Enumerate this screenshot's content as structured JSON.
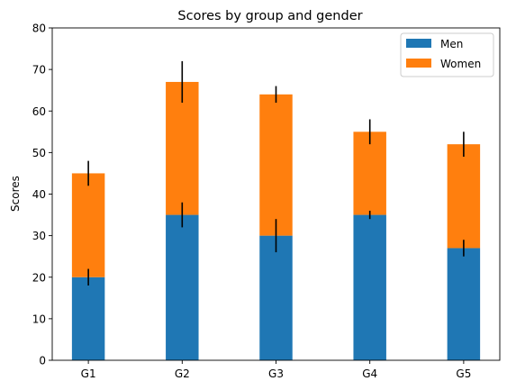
{
  "chart_data": {
    "type": "bar",
    "stacked": true,
    "title": "Scores by group and gender",
    "xlabel": "",
    "ylabel": "Scores",
    "categories": [
      "G1",
      "G2",
      "G3",
      "G4",
      "G5"
    ],
    "ylim": [
      0,
      80
    ],
    "yticks": [
      0,
      10,
      20,
      30,
      40,
      50,
      60,
      70,
      80
    ],
    "grid": false,
    "legend_position": "top-right",
    "series": [
      {
        "name": "Men",
        "color": "#1f77b4",
        "values": [
          20,
          35,
          30,
          35,
          27
        ],
        "errors": [
          2,
          3,
          4,
          1,
          2
        ]
      },
      {
        "name": "Women",
        "color": "#ff7f0e",
        "values": [
          25,
          32,
          34,
          20,
          25
        ],
        "errors": [
          3,
          5,
          2,
          3,
          3
        ]
      }
    ]
  }
}
